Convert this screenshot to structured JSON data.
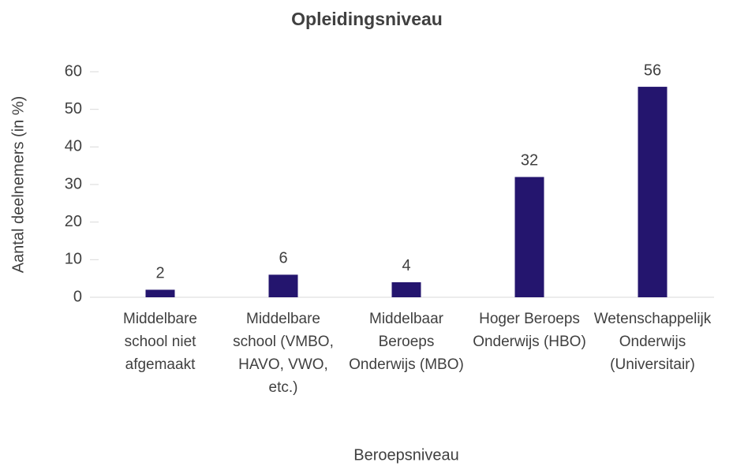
{
  "chart_data": {
    "type": "bar",
    "title": "Opleidingsniveau",
    "x_label": "Beroepsniveau",
    "y_label": "Aantal deelnemers (in %)",
    "categories": [
      "Middelbare school niet afgemaakt",
      "Middelbare school (VMBO, HAVO, VWO, etc.)",
      "Middelbaar Beroeps Onderwijs (MBO)",
      "Hoger Beroeps Onderwijs (HBO)",
      "Wetenschappelijk Onderwijs (Universitair)"
    ],
    "values": [
      2,
      6,
      4,
      32,
      56
    ],
    "color": "#24156e",
    "ylim": [
      0,
      60
    ],
    "yticks": [
      0,
      10,
      20,
      30,
      40,
      50,
      60
    ],
    "grid": false
  }
}
